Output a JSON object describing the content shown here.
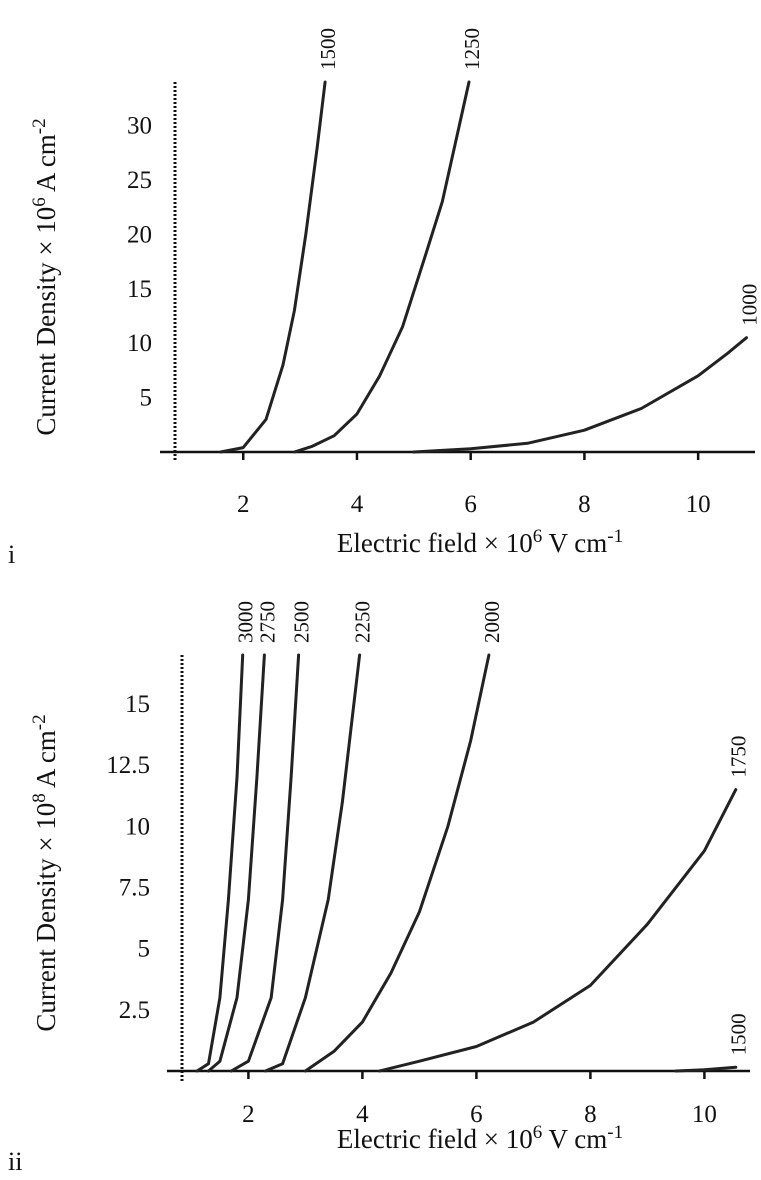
{
  "chart_data": [
    {
      "panel_label": "i",
      "type": "line",
      "xlabel_base": "Electric field × 10",
      "xlabel_exp": "6",
      "xlabel_unit": " V cm",
      "xlabel_unit_exp": "-1",
      "ylabel_base": "Current Density × 10",
      "ylabel_exp": "6",
      "ylabel_unit": " A cm",
      "ylabel_unit_exp": "-2",
      "xlim": [
        0.8,
        11
      ],
      "ylim": [
        0,
        34
      ],
      "x_ticks": [
        2,
        4,
        6,
        8,
        10
      ],
      "x_tick_labels": [
        "2",
        "4",
        "6",
        "8",
        "10"
      ],
      "y_ticks": [
        5,
        10,
        15,
        20,
        25,
        30
      ],
      "y_tick_labels": [
        "5",
        "10",
        "15",
        "20",
        "25",
        "30"
      ],
      "grid": false,
      "series": [
        {
          "name": "1500",
          "x": [
            1.6,
            2.0,
            2.4,
            2.7,
            2.9,
            3.1,
            3.3,
            3.44
          ],
          "y": [
            0,
            0.4,
            3,
            8,
            13,
            20,
            28,
            34
          ]
        },
        {
          "name": "1250",
          "x": [
            2.9,
            3.2,
            3.6,
            4.0,
            4.4,
            4.8,
            5.2,
            5.5,
            5.8,
            5.97
          ],
          "y": [
            0,
            0.5,
            1.5,
            3.5,
            7,
            11.5,
            18,
            23,
            30,
            34
          ]
        },
        {
          "name": "1000",
          "x": [
            5.0,
            6.0,
            7.0,
            8.0,
            9.0,
            10.0,
            10.5,
            10.85
          ],
          "y": [
            0,
            0.3,
            0.8,
            2,
            4,
            7,
            9,
            10.5
          ]
        }
      ]
    },
    {
      "panel_label": "ii",
      "type": "line",
      "xlabel_base": "Electric field × 10",
      "xlabel_exp": "6",
      "xlabel_unit": " V cm",
      "xlabel_unit_exp": "-1",
      "ylabel_base": "Current Density × 10",
      "ylabel_exp": "8",
      "ylabel_unit": " A cm",
      "ylabel_unit_exp": "-2",
      "xlim": [
        0.8,
        10.8
      ],
      "ylim": [
        0,
        17
      ],
      "x_ticks": [
        2,
        4,
        6,
        8,
        10
      ],
      "x_tick_labels": [
        "2",
        "4",
        "6",
        "8",
        "10"
      ],
      "y_ticks": [
        2.5,
        5,
        7.5,
        10,
        12.5,
        15
      ],
      "y_tick_labels": [
        "2.5",
        "5",
        "7.5",
        "10",
        "12.5",
        "15"
      ],
      "grid": false,
      "series": [
        {
          "name": "3000",
          "x": [
            1.1,
            1.3,
            1.5,
            1.65,
            1.8,
            1.9
          ],
          "y": [
            0,
            0.3,
            3,
            7,
            12,
            17
          ]
        },
        {
          "name": "2750",
          "x": [
            1.3,
            1.5,
            1.8,
            2.0,
            2.15,
            2.28
          ],
          "y": [
            0,
            0.4,
            3,
            7,
            12,
            17
          ]
        },
        {
          "name": "2500",
          "x": [
            1.7,
            2.0,
            2.4,
            2.6,
            2.75,
            2.88
          ],
          "y": [
            0,
            0.4,
            3,
            7,
            12,
            17
          ]
        },
        {
          "name": "2250",
          "x": [
            2.3,
            2.6,
            3.0,
            3.4,
            3.65,
            3.95
          ],
          "y": [
            0,
            0.3,
            3,
            7,
            11,
            17
          ]
        },
        {
          "name": "2000",
          "x": [
            3.0,
            3.5,
            4.0,
            4.5,
            5.0,
            5.5,
            5.9,
            6.22
          ],
          "y": [
            0,
            0.8,
            2,
            4,
            6.5,
            10,
            13.5,
            17
          ]
        },
        {
          "name": "1750",
          "x": [
            4.3,
            5.0,
            6.0,
            7.0,
            8.0,
            9.0,
            10.0,
            10.55
          ],
          "y": [
            0,
            0.4,
            1,
            2,
            3.5,
            6,
            9,
            11.5
          ]
        },
        {
          "name": "1500",
          "x": [
            9.5,
            10.0,
            10.55
          ],
          "y": [
            0,
            0.05,
            0.15
          ]
        }
      ]
    }
  ]
}
